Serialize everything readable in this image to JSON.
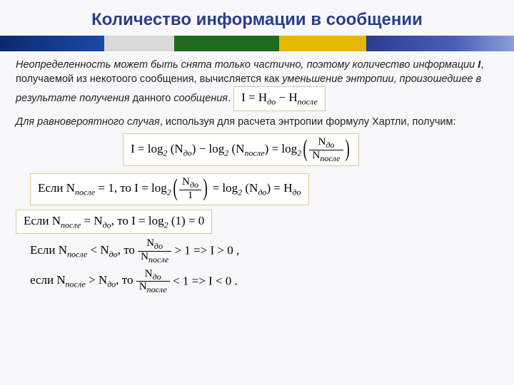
{
  "title": "Количество информации в сообщении",
  "p1a": "Неопределенность может быть снята только частично, поэтому количество информации ",
  "p1b": "I",
  "p1c": ", получаемой из некотоого сообщения, вычисляется как ",
  "p1d": "уменьшение энтропии, произошедшее в результате получения",
  "p1e": " данного ",
  "p1f": "сообщения",
  "p1g": ".",
  "f_main": "I = H",
  "sub_do": "до",
  "sub_posle": "после",
  "minus": " − H",
  "p2a": "Для равновероятного случая",
  "p2b": ", используя для расчета энтропии формулу Хартли, получим:",
  "f2_pre": "I = log",
  "two": "2",
  "Ndo": "N",
  "Nposle": "N",
  "one": "1",
  "eq": " = ",
  "row1_a": "Если  N",
  "row1_b": " = 1,  то   ",
  "row1_c": " = H",
  "row2_a": "Если  N",
  "row2_b": " = N",
  "row2_c": ", то  I = log",
  "row2_d": " (1) = 0",
  "row3_a": "Если  N",
  "row3_b": " < N",
  "row3_c": ", то   ",
  "row3_d": " > 1   =>   I > 0 ,",
  "row4_a": "если  N",
  "row4_b": " > N",
  "row4_c": ", то   ",
  "row4_d": " < 1   =>   I < 0 ."
}
